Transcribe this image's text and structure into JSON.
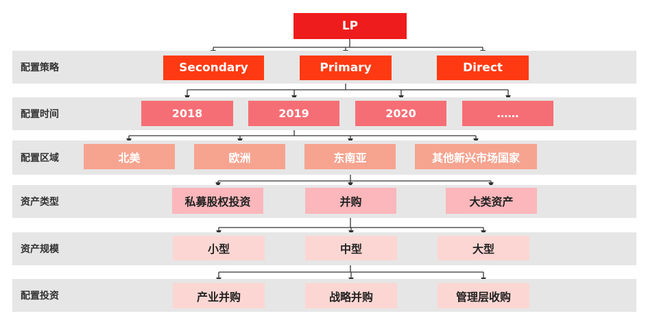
{
  "root": {
    "label": "LP",
    "color": "#ee1c1c"
  },
  "rows": [
    {
      "label": "配置策略",
      "color": "#ff3a12",
      "text_color": "#ffffff",
      "items": [
        "Secondary",
        "Primary",
        "Direct"
      ]
    },
    {
      "label": "配置时间",
      "color": "#f66e75",
      "text_color": "#ffffff",
      "items": [
        "2018",
        "2019",
        "2020",
        "……"
      ]
    },
    {
      "label": "配置区域",
      "color": "#f6a490",
      "text_color": "#ffffff",
      "items": [
        "北美",
        "欧洲",
        "东南亚",
        "其他新兴市场国家"
      ]
    },
    {
      "label": "资产类型",
      "color": "#fbb7bb",
      "text_color": "#222222",
      "items": [
        "私募股权投资",
        "并购",
        "大类资产"
      ]
    },
    {
      "label": "资产规模",
      "color": "#fcd6d3",
      "text_color": "#222222",
      "items": [
        "小型",
        "中型",
        "大型"
      ]
    },
    {
      "label": "配置投资",
      "color": "#fcd6d3",
      "text_color": "#222222",
      "items": [
        "产业并购",
        "战略并购",
        "管理层收购"
      ]
    }
  ]
}
